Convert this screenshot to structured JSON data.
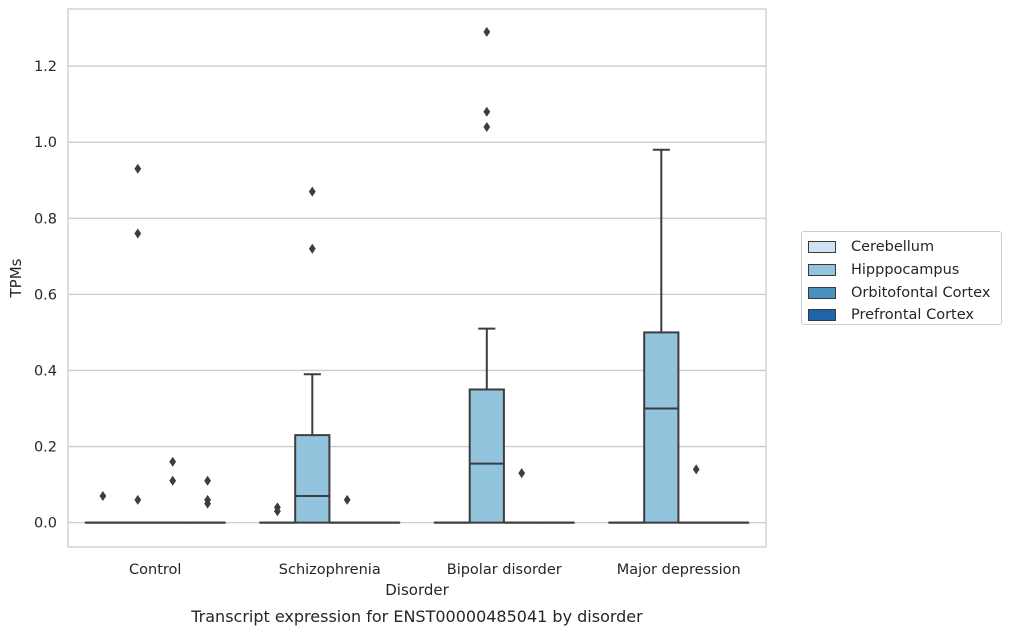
{
  "chart_data": {
    "type": "box",
    "title": "Transcript expression for ENST00000485041 by disorder",
    "xlabel": "Disorder",
    "ylabel": "TPMs",
    "ylim": [
      -0.064,
      1.35
    ],
    "yticks": [
      0.0,
      0.2,
      0.4,
      0.6,
      0.8,
      1.0,
      1.2
    ],
    "ytick_labels": [
      "0.0",
      "0.2",
      "0.4",
      "0.6",
      "0.8",
      "1.0",
      "1.2"
    ],
    "categories": [
      "Control",
      "Schizophrenia",
      "Bipolar disorder",
      "Major depression"
    ],
    "grid": "horizontal",
    "legend_position": "right-outside",
    "series": [
      {
        "name": "Cerebellum",
        "color": "#cfe1f2",
        "boxes": [
          {
            "category": "Control",
            "q1": 0.0,
            "median": 0.0,
            "q3": 0.0,
            "whisker_low": 0.0,
            "whisker_high": 0.0,
            "outliers": [
              0.07
            ]
          },
          {
            "category": "Schizophrenia",
            "q1": 0.0,
            "median": 0.0,
            "q3": 0.0,
            "whisker_low": 0.0,
            "whisker_high": 0.0,
            "outliers": [
              0.04,
              0.03
            ]
          },
          {
            "category": "Bipolar disorder",
            "q1": 0.0,
            "median": 0.0,
            "q3": 0.0,
            "whisker_low": 0.0,
            "whisker_high": 0.0,
            "outliers": []
          },
          {
            "category": "Major depression",
            "q1": 0.0,
            "median": 0.0,
            "q3": 0.0,
            "whisker_low": 0.0,
            "whisker_high": 0.0,
            "outliers": []
          }
        ]
      },
      {
        "name": "Hipppocampus",
        "color": "#93c4de",
        "boxes": [
          {
            "category": "Control",
            "q1": 0.0,
            "median": 0.0,
            "q3": 0.0,
            "whisker_low": 0.0,
            "whisker_high": 0.0,
            "outliers": [
              0.93,
              0.76,
              0.06
            ]
          },
          {
            "category": "Schizophrenia",
            "q1": 0.0,
            "median": 0.07,
            "q3": 0.23,
            "whisker_low": 0.0,
            "whisker_high": 0.39,
            "outliers": [
              0.87,
              0.72
            ]
          },
          {
            "category": "Bipolar disorder",
            "q1": 0.0,
            "median": 0.155,
            "q3": 0.35,
            "whisker_low": 0.0,
            "whisker_high": 0.51,
            "outliers": [
              1.29,
              1.08,
              1.04
            ]
          },
          {
            "category": "Major depression",
            "q1": 0.0,
            "median": 0.3,
            "q3": 0.5,
            "whisker_low": 0.0,
            "whisker_high": 0.98,
            "outliers": []
          }
        ]
      },
      {
        "name": "Orbitofontal Cortex",
        "color": "#4a91c2",
        "boxes": [
          {
            "category": "Control",
            "q1": 0.0,
            "median": 0.0,
            "q3": 0.0,
            "whisker_low": 0.0,
            "whisker_high": 0.0,
            "outliers": [
              0.16,
              0.11
            ]
          },
          {
            "category": "Schizophrenia",
            "q1": 0.0,
            "median": 0.0,
            "q3": 0.0,
            "whisker_low": 0.0,
            "whisker_high": 0.0,
            "outliers": [
              0.06
            ]
          },
          {
            "category": "Bipolar disorder",
            "q1": 0.0,
            "median": 0.0,
            "q3": 0.0,
            "whisker_low": 0.0,
            "whisker_high": 0.0,
            "outliers": [
              0.13
            ]
          },
          {
            "category": "Major depression",
            "q1": 0.0,
            "median": 0.0,
            "q3": 0.0,
            "whisker_low": 0.0,
            "whisker_high": 0.0,
            "outliers": [
              0.14
            ]
          }
        ]
      },
      {
        "name": "Prefrontal Cortex",
        "color": "#1f63a8",
        "boxes": [
          {
            "category": "Control",
            "q1": 0.0,
            "median": 0.0,
            "q3": 0.0,
            "whisker_low": 0.0,
            "whisker_high": 0.0,
            "outliers": [
              0.11,
              0.06,
              0.05
            ]
          },
          {
            "category": "Schizophrenia",
            "q1": 0.0,
            "median": 0.0,
            "q3": 0.0,
            "whisker_low": 0.0,
            "whisker_high": 0.0,
            "outliers": []
          },
          {
            "category": "Bipolar disorder",
            "q1": 0.0,
            "median": 0.0,
            "q3": 0.0,
            "whisker_low": 0.0,
            "whisker_high": 0.0,
            "outliers": []
          },
          {
            "category": "Major depression",
            "q1": 0.0,
            "median": 0.0,
            "q3": 0.0,
            "whisker_low": 0.0,
            "whisker_high": 0.0,
            "outliers": []
          }
        ]
      }
    ]
  }
}
